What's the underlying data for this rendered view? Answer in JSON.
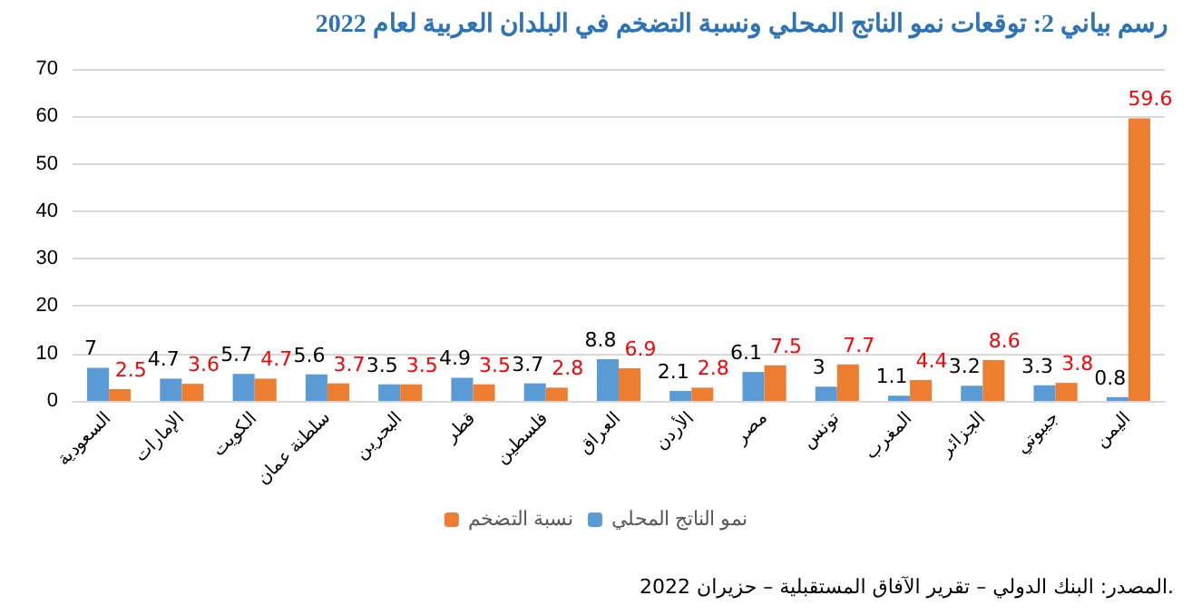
{
  "chart_data": {
    "type": "bar",
    "title": "رسم بياني 2: توقعات نمو الناتج المحلي ونسبة التضخم في البلدان العربية لعام 2022",
    "categories": [
      "السعودية",
      "الإمارات",
      "الكويت",
      "سلطنة عمان",
      "البحرين",
      "قطر",
      "فلسطين",
      "العراق",
      "الأردن",
      "مصر",
      "تونس",
      "المغرب",
      "الجزائر",
      "جيبوتي",
      "اليمن"
    ],
    "series": [
      {
        "name": "نمو الناتج المحلي",
        "color": "#5b9bd5",
        "values": [
          7,
          4.7,
          5.7,
          5.6,
          3.5,
          4.9,
          3.7,
          8.8,
          2.1,
          6.1,
          3,
          1.1,
          3.2,
          3.3,
          0.8
        ]
      },
      {
        "name": "نسبة التضخم",
        "color": "#ed7d31",
        "values": [
          2.5,
          3.6,
          4.7,
          3.7,
          3.5,
          3.5,
          2.8,
          6.9,
          2.8,
          7.5,
          7.7,
          4.4,
          8.6,
          3.8,
          59.6
        ]
      }
    ],
    "ylim": [
      0,
      70
    ],
    "yticks": [
      0,
      10,
      20,
      30,
      40,
      50,
      60,
      70
    ],
    "grid": "y",
    "legend": "bottom",
    "data_labels": true,
    "annotations": [
      "المصدر: البنك الدولي – تقرير الآفاق المستقبلية – حزيران 2022."
    ]
  }
}
